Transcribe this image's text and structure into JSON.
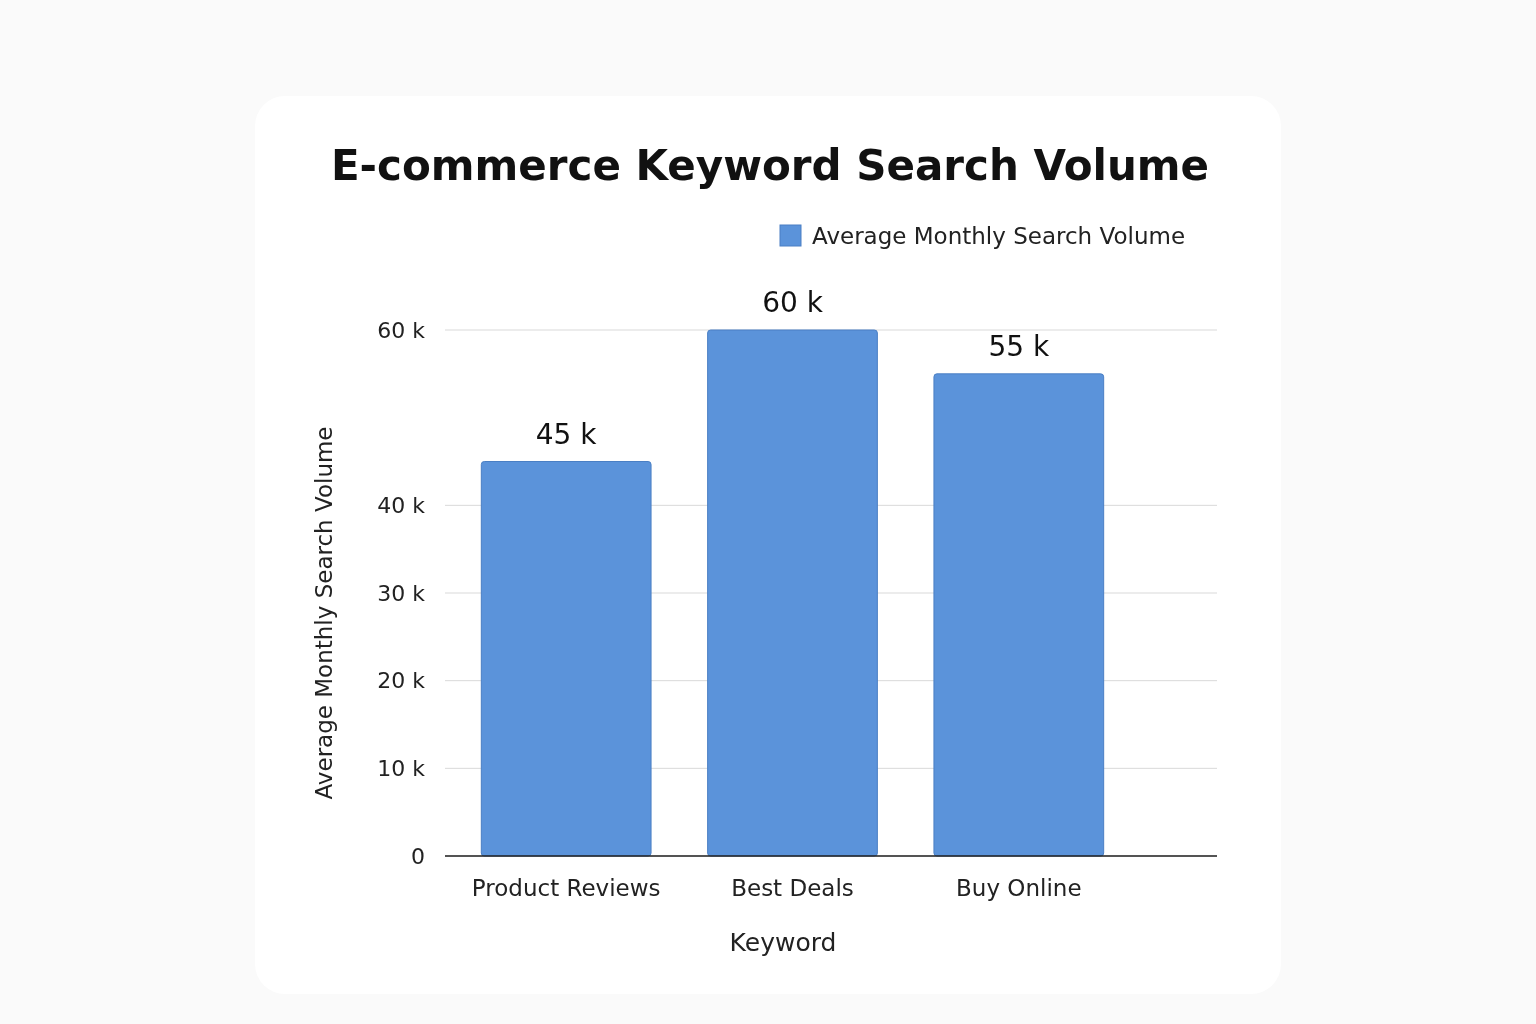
{
  "chart_data": {
    "type": "bar",
    "title": "E-commerce Keyword Search Volume",
    "xlabel": "Keyword",
    "ylabel": "Average Monthly Search Volume",
    "categories": [
      "Product Reviews",
      "Best Deals",
      "Buy Online"
    ],
    "series": [
      {
        "name": "Average Monthly Search Volume",
        "color": "#5b93da",
        "values": [
          45000,
          60000,
          55000
        ],
        "value_labels": [
          "45 k",
          "60 k",
          "55 k"
        ]
      }
    ],
    "ylim": [
      0,
      60000
    ],
    "yticks": [
      0,
      {
        "value": 10000,
        "label": "10 k"
      },
      {
        "value": 20000,
        "label": "20 k"
      },
      {
        "value": 30000,
        "label": "30 k"
      },
      {
        "value": 40000,
        "label": "40 k"
      },
      {
        "value": 60000,
        "label": "60 k"
      }
    ],
    "grid": "y",
    "legend": "top right"
  }
}
